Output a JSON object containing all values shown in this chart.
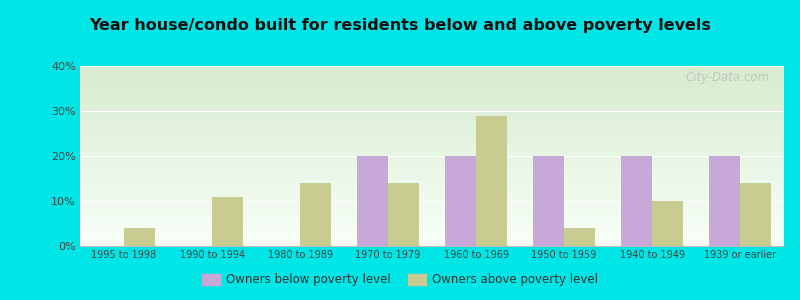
{
  "title": "Year house/condo built for residents below and above poverty levels",
  "categories": [
    "1995 to 1998",
    "1990 to 1994",
    "1980 to 1989",
    "1970 to 1979",
    "1960 to 1969",
    "1950 to 1959",
    "1940 to 1949",
    "1939 or earlier"
  ],
  "below_poverty": [
    0,
    0,
    0,
    20,
    20,
    20,
    20,
    20
  ],
  "above_poverty": [
    4,
    11,
    14,
    14,
    29,
    4,
    10,
    14
  ],
  "below_color": "#c8a8d8",
  "above_color": "#c8cc90",
  "background_color": "#00e5e5",
  "plot_bg_top": "#d8ecd0",
  "plot_bg_bottom": "#f8fff8",
  "ylim": [
    0,
    40
  ],
  "yticks": [
    0,
    10,
    20,
    30,
    40
  ],
  "legend_below": "Owners below poverty level",
  "legend_above": "Owners above poverty level",
  "watermark": "City-Data.com",
  "bar_width": 0.35
}
